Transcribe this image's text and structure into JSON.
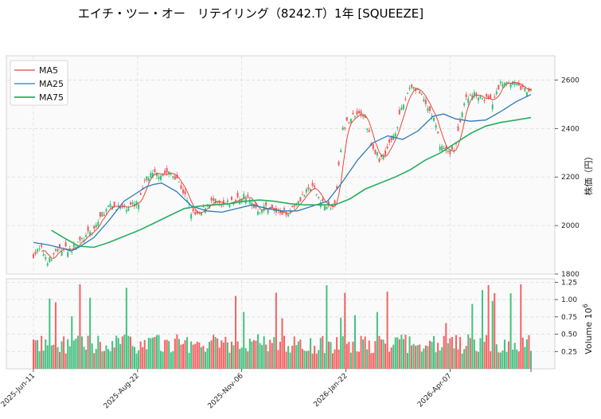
{
  "chart_data": {
    "type": "candlestick",
    "title": "エイチ・ツー・オー　リテイリング（8242.T）1年 [SQUEEZE]",
    "price_axis": {
      "label": "株価（円）",
      "ticks": [
        1800,
        2000,
        2200,
        2400,
        2600
      ],
      "range": [
        1800,
        2700
      ]
    },
    "volume_axis": {
      "label": "Volume",
      "exponent": "6",
      "ticks": [
        "0.25",
        "0.50",
        "0.75",
        "1.00",
        "1.25"
      ],
      "tick_values": [
        0.25,
        0.5,
        0.75,
        1.0,
        1.25
      ],
      "range": [
        0,
        1.3
      ]
    },
    "x_ticks": [
      "2025-Jun-11",
      "2025-Aug-22",
      "2025-Nov-06",
      "2026-Jan-22",
      "2026-Apr-07"
    ],
    "legend": {
      "items": [
        "MA5",
        "MA25",
        "MA75"
      ],
      "placement": "top-left"
    },
    "grid": true,
    "n_days": 247,
    "price_path": [
      [
        0,
        1880
      ],
      [
        5,
        1905
      ],
      [
        10,
        1850
      ],
      [
        15,
        1895
      ],
      [
        20,
        1905
      ],
      [
        25,
        1900
      ],
      [
        30,
        1930
      ],
      [
        35,
        1955
      ],
      [
        40,
        1985
      ],
      [
        45,
        2040
      ],
      [
        50,
        2075
      ],
      [
        55,
        2080
      ],
      [
        60,
        2070
      ],
      [
        65,
        2085
      ],
      [
        70,
        2090
      ],
      [
        75,
        2200
      ],
      [
        80,
        2210
      ],
      [
        85,
        2215
      ],
      [
        90,
        2215
      ],
      [
        95,
        2200
      ],
      [
        100,
        2130
      ],
      [
        105,
        2050
      ],
      [
        110,
        2040
      ],
      [
        115,
        2090
      ],
      [
        120,
        2100
      ],
      [
        125,
        2075
      ],
      [
        130,
        2095
      ],
      [
        135,
        2105
      ],
      [
        140,
        2125
      ],
      [
        145,
        2090
      ],
      [
        150,
        2060
      ],
      [
        155,
        2080
      ],
      [
        160,
        2060
      ],
      [
        165,
        2050
      ],
      [
        170,
        2060
      ],
      [
        175,
        2100
      ],
      [
        180,
        2130
      ],
      [
        185,
        2160
      ],
      [
        190,
        2110
      ],
      [
        195,
        2070
      ],
      [
        200,
        2080
      ],
      [
        205,
        2390
      ],
      [
        210,
        2440
      ],
      [
        215,
        2470
      ],
      [
        220,
        2440
      ],
      [
        225,
        2320
      ],
      [
        230,
        2270
      ],
      [
        235,
        2320
      ],
      [
        240,
        2390
      ],
      [
        245,
        2490
      ],
      [
        250,
        2580
      ],
      [
        255,
        2560
      ],
      [
        260,
        2500
      ],
      [
        265,
        2450
      ],
      [
        270,
        2330
      ],
      [
        275,
        2300
      ],
      [
        280,
        2320
      ],
      [
        285,
        2500
      ],
      [
        290,
        2540
      ],
      [
        295,
        2540
      ],
      [
        300,
        2520
      ],
      [
        305,
        2510
      ],
      [
        310,
        2590
      ],
      [
        315,
        2600
      ],
      [
        320,
        2580
      ],
      [
        325,
        2560
      ],
      [
        330,
        2550
      ]
    ],
    "ma25_path": [
      [
        0,
        1930
      ],
      [
        10,
        1920
      ],
      [
        20,
        1905
      ],
      [
        25,
        1895
      ],
      [
        30,
        1910
      ],
      [
        40,
        1950
      ],
      [
        50,
        2020
      ],
      [
        55,
        2060
      ],
      [
        60,
        2100
      ],
      [
        70,
        2140
      ],
      [
        75,
        2160
      ],
      [
        80,
        2170
      ],
      [
        85,
        2175
      ],
      [
        95,
        2140
      ],
      [
        105,
        2080
      ],
      [
        115,
        2060
      ],
      [
        125,
        2055
      ],
      [
        135,
        2070
      ],
      [
        145,
        2085
      ],
      [
        155,
        2070
      ],
      [
        165,
        2060
      ],
      [
        175,
        2060
      ],
      [
        185,
        2080
      ],
      [
        195,
        2100
      ],
      [
        205,
        2180
      ],
      [
        215,
        2270
      ],
      [
        225,
        2340
      ],
      [
        235,
        2370
      ],
      [
        245,
        2355
      ],
      [
        255,
        2390
      ],
      [
        265,
        2450
      ],
      [
        272,
        2460
      ],
      [
        280,
        2440
      ],
      [
        290,
        2430
      ],
      [
        300,
        2435
      ],
      [
        310,
        2470
      ],
      [
        320,
        2510
      ],
      [
        330,
        2540
      ]
    ],
    "ma75_path": [
      [
        12,
        1980
      ],
      [
        20,
        1950
      ],
      [
        30,
        1915
      ],
      [
        40,
        1910
      ],
      [
        50,
        1930
      ],
      [
        60,
        1955
      ],
      [
        70,
        1980
      ],
      [
        80,
        2010
      ],
      [
        90,
        2040
      ],
      [
        100,
        2070
      ],
      [
        110,
        2080
      ],
      [
        120,
        2085
      ],
      [
        130,
        2090
      ],
      [
        140,
        2100
      ],
      [
        150,
        2105
      ],
      [
        160,
        2100
      ],
      [
        170,
        2090
      ],
      [
        180,
        2085
      ],
      [
        190,
        2085
      ],
      [
        200,
        2085
      ],
      [
        210,
        2110
      ],
      [
        220,
        2150
      ],
      [
        230,
        2175
      ],
      [
        240,
        2200
      ],
      [
        250,
        2230
      ],
      [
        260,
        2270
      ],
      [
        270,
        2300
      ],
      [
        280,
        2340
      ],
      [
        290,
        2380
      ],
      [
        300,
        2410
      ],
      [
        310,
        2425
      ],
      [
        320,
        2435
      ],
      [
        330,
        2445
      ]
    ],
    "colors": {
      "up": "#3bbf7a",
      "down": "#f25c5c",
      "ma5": "#e8453c",
      "ma25": "#2b7bba",
      "ma75": "#27ae60"
    }
  }
}
